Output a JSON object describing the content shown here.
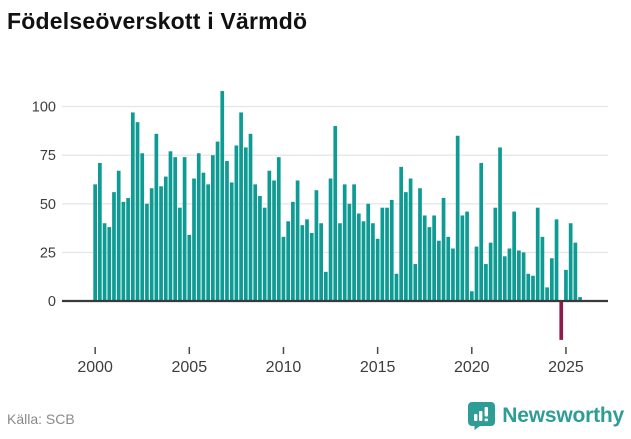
{
  "title": "Födelseöverskott i Värmdö",
  "footer": {
    "source": "Källa: SCB",
    "brand_name": "Newsworthy"
  },
  "colors": {
    "bar": "#0d9b93",
    "highlight": "#8e1a4f",
    "grid": "#e7e7e7",
    "axis": "#3a3a3a",
    "tick": "#4a4a4a",
    "axis_label": "#3d3d3d",
    "brand": "#2e9d95"
  },
  "chart_data": {
    "type": "bar",
    "title": "Födelseöverskott i Värmdö",
    "frequency": "quarterly",
    "start": "2000-Q1",
    "end": "2025-Q4",
    "xlabel": "",
    "ylabel": "",
    "ylim": [
      -25,
      112
    ],
    "y_ticks": [
      0,
      25,
      50,
      75,
      100
    ],
    "x_tick_labels": [
      "2000",
      "2005",
      "2010",
      "2015",
      "2020",
      "2025"
    ],
    "grid": "horizontal-only",
    "legend": "none",
    "highlight_index": 99,
    "highlight_period": "2024-Q4",
    "highlight_value": -20,
    "values": [
      60,
      71,
      40,
      38,
      56,
      67,
      51,
      53,
      97,
      92,
      76,
      50,
      58,
      86,
      59,
      64,
      77,
      74,
      48,
      74,
      34,
      63,
      76,
      66,
      60,
      75,
      82,
      108,
      72,
      61,
      80,
      97,
      79,
      86,
      60,
      54,
      48,
      67,
      62,
      74,
      33,
      41,
      51,
      62,
      39,
      42,
      35,
      57,
      40,
      15,
      63,
      90,
      40,
      60,
      50,
      60,
      45,
      41,
      50,
      40,
      32,
      48,
      48,
      52,
      14,
      69,
      56,
      63,
      19,
      58,
      44,
      38,
      44,
      31,
      53,
      33,
      27,
      85,
      44,
      46,
      5,
      28,
      71,
      19,
      30,
      48,
      79,
      23,
      27,
      46,
      26,
      25,
      14,
      13,
      48,
      33,
      7,
      22,
      42,
      -20,
      16,
      40,
      30,
      2
    ]
  }
}
